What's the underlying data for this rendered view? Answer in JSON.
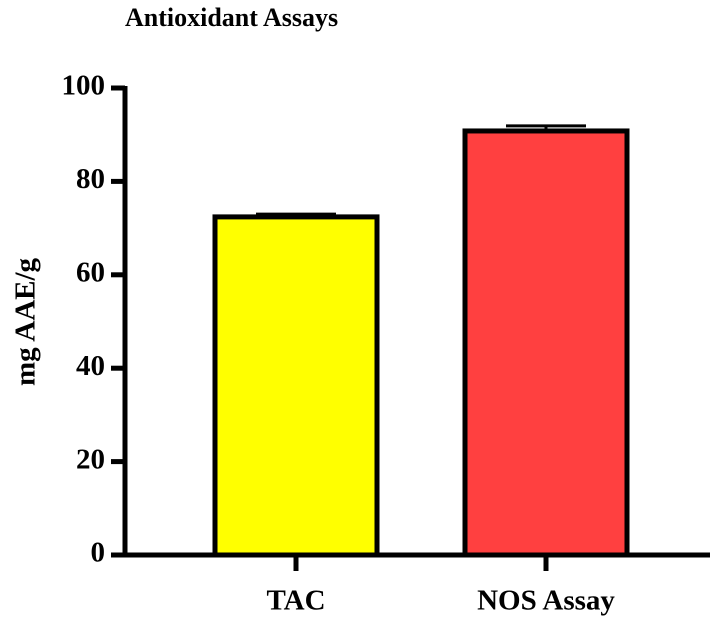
{
  "chart_data": {
    "type": "bar",
    "title": "Antioxidant Assays",
    "y_label": "mg AAE/g",
    "categories": [
      "TAC",
      "NOS Assay"
    ],
    "values": [
      72.4,
      90.8
    ],
    "errors": [
      0.6,
      1.1
    ],
    "colors": [
      "#ffff00",
      "#ff4040"
    ],
    "ylim": [
      0,
      100
    ],
    "yticks": [
      0,
      20,
      40,
      60,
      80,
      100
    ]
  }
}
